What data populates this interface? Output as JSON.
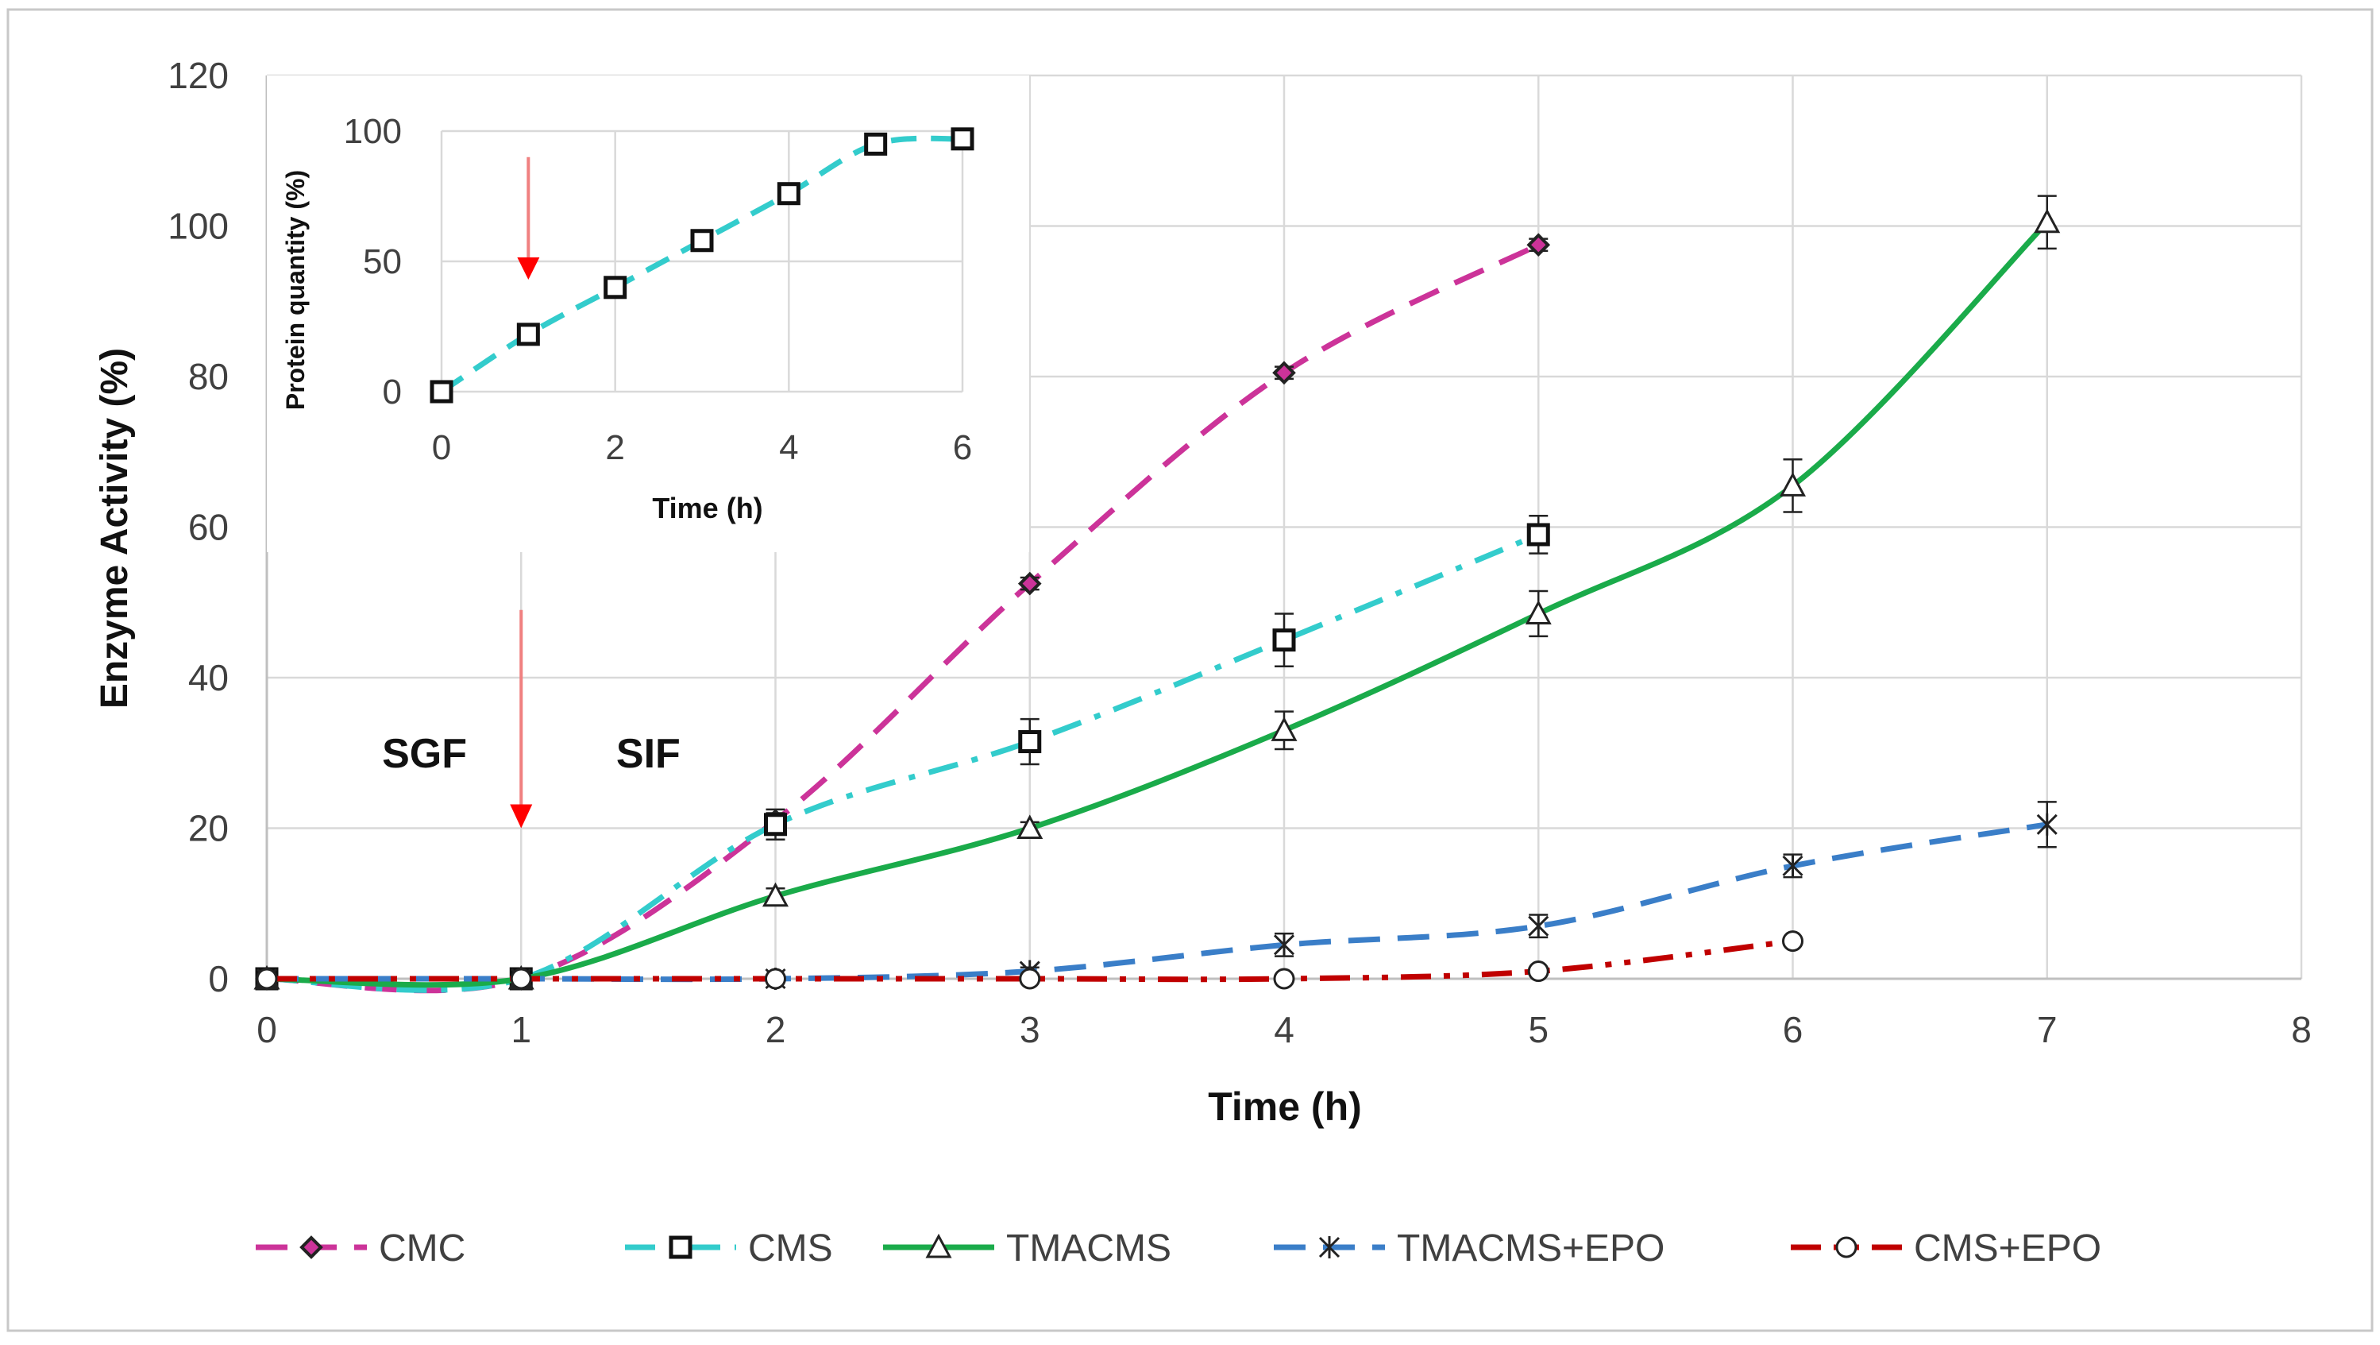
{
  "chart_data": [
    {
      "type": "line",
      "xlabel": "Time (h)",
      "ylabel": "Enzyme Activity (%)",
      "xlim": [
        0,
        8
      ],
      "ylim": [
        0,
        120
      ],
      "xticks": [
        0,
        1,
        2,
        3,
        4,
        5,
        6,
        7,
        8
      ],
      "yticks": [
        0,
        20,
        40,
        60,
        80,
        100,
        120
      ],
      "grid": true,
      "legend_position": "bottom",
      "annotations": [
        {
          "text": "SGF",
          "x": 0.62,
          "y": 30
        },
        {
          "text": "SIF",
          "x": 1.5,
          "y": 30
        },
        {
          "type": "arrow",
          "x": 1,
          "y_from": 49,
          "y_to": 20
        }
      ],
      "series": [
        {
          "name": "CMC",
          "color": "#cc3399",
          "dash": "dash",
          "marker": "diamond",
          "x": [
            0,
            1,
            2,
            3,
            4,
            5
          ],
          "y": [
            0,
            0,
            21,
            52.5,
            80.5,
            97.5
          ],
          "err": [
            0,
            0,
            1,
            0.8,
            0.8,
            0.8
          ]
        },
        {
          "name": "CMS",
          "color": "#33cccc",
          "dash": "dashdot",
          "marker": "square",
          "x": [
            0,
            1,
            2,
            3,
            4,
            5
          ],
          "y": [
            0,
            0,
            20.5,
            31.5,
            45,
            59
          ],
          "err": [
            0,
            0,
            2,
            3,
            3.5,
            2.5
          ]
        },
        {
          "name": "TMACMS",
          "color": "#1aab4a",
          "dash": "solid",
          "marker": "triangle",
          "x": [
            0,
            1,
            2,
            3,
            4,
            5,
            6,
            7
          ],
          "y": [
            0,
            0,
            11,
            20,
            33,
            48.5,
            65.5,
            100.5
          ],
          "err": [
            0,
            0,
            1,
            0.8,
            2.5,
            3,
            3.5,
            3.5
          ]
        },
        {
          "name": "TMACMS+EPO",
          "color": "#3a7ec8",
          "dash": "dash",
          "marker": "star",
          "x": [
            0,
            1,
            2,
            3,
            4,
            5,
            6,
            7
          ],
          "y": [
            0,
            0,
            0,
            1,
            4.5,
            7,
            15,
            20.5
          ],
          "err": [
            0,
            0,
            0,
            0.5,
            1.5,
            1.5,
            1.5,
            3
          ]
        },
        {
          "name": "CMS+EPO",
          "color": "#c00000",
          "dash": "dashdotdot",
          "marker": "circle",
          "x": [
            0,
            1,
            2,
            3,
            4,
            5,
            6
          ],
          "y": [
            0,
            0,
            0,
            0,
            0,
            1,
            5
          ],
          "err": [
            0,
            0,
            0,
            0,
            0,
            0,
            0
          ]
        }
      ]
    },
    {
      "type": "line",
      "xlabel": "Time (h)",
      "ylabel": "Protein quantity (%)",
      "xlim": [
        0,
        6
      ],
      "ylim": [
        0,
        100
      ],
      "xticks": [
        0,
        2,
        4,
        6
      ],
      "yticks": [
        0,
        50,
        100
      ],
      "grid": true,
      "annotations": [
        {
          "type": "arrow",
          "x": 1,
          "y_from": 90,
          "y_to": 43
        }
      ],
      "series": [
        {
          "name": "Protein quantity",
          "color": "#33cccc",
          "dash": "dash",
          "marker": "square",
          "x": [
            0,
            1,
            2,
            3,
            4,
            5,
            6
          ],
          "y": [
            0,
            22,
            40,
            58,
            76,
            95,
            97
          ]
        }
      ]
    }
  ]
}
